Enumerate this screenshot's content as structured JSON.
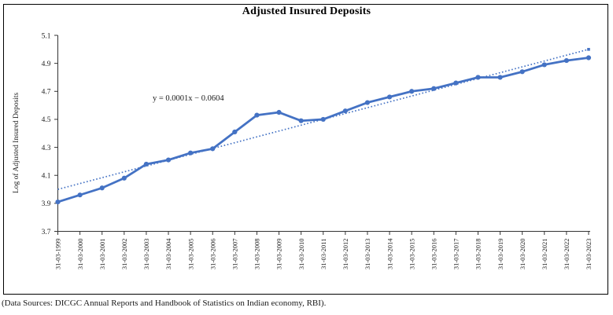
{
  "chart_data": {
    "type": "line",
    "title": "Adjusted Insured Deposits",
    "ylabel": "Log of Adjusted Insured Deposits",
    "xlabel": "",
    "categories": [
      "31-03-1999",
      "31-03-2000",
      "31-03-2001",
      "31-03-2002",
      "31-03-2003",
      "31-03-2004",
      "31-03-2005",
      "31-03-2006",
      "31-03-2007",
      "31-03-2008",
      "31-03-2009",
      "31-03-2010",
      "31-03-2011",
      "31-03-2012",
      "31-03-2013",
      "31-03-2014",
      "31-03-2015",
      "31-03-2016",
      "31-03-2017",
      "31-03-2018",
      "31-03-2019",
      "31-03-2020",
      "31-03-2021",
      "31-03-2022",
      "31-03-2023"
    ],
    "values": [
      3.91,
      3.96,
      4.01,
      4.08,
      4.18,
      4.21,
      4.26,
      4.29,
      4.41,
      4.53,
      4.55,
      4.49,
      4.5,
      4.56,
      4.62,
      4.66,
      4.7,
      4.72,
      4.76,
      4.8,
      4.8,
      4.84,
      4.89,
      4.92,
      4.94
    ],
    "ylim": [
      3.7,
      5.1
    ],
    "yticks": [
      3.7,
      3.9,
      4.1,
      4.3,
      4.5,
      4.7,
      4.9,
      5.1
    ],
    "grid": false,
    "legend": "none",
    "series_color": "#4472C4",
    "axis_color": "#333333",
    "trendline": {
      "equation": "y = 0.0001x − 0.0604",
      "style": "dotted",
      "start_value": 4.0,
      "end_value": 5.0,
      "color": "#4472C4"
    }
  },
  "caption": "(Data Sources: DICGC Annual Reports and Handbook of Statistics on Indian economy, RBI)."
}
